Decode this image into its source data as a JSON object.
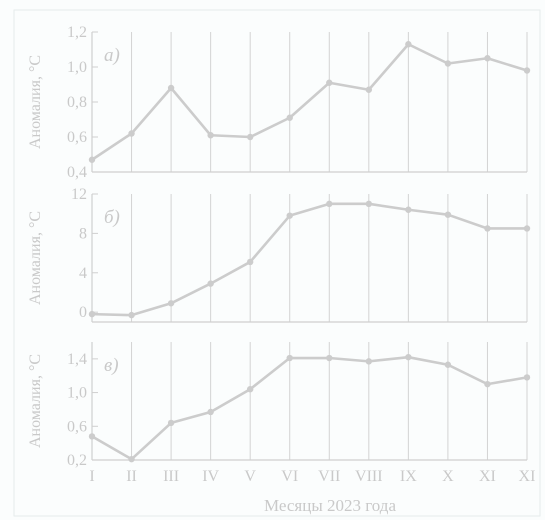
{
  "chart_data": {
    "type": "line",
    "categories": [
      "I",
      "II",
      "III",
      "IV",
      "V",
      "VI",
      "VII",
      "VIII",
      "IX",
      "X",
      "XI",
      "XI"
    ],
    "xlabel": "Месяцы 2023 года",
    "grid": true,
    "colors": {
      "line": "#cccccc",
      "text": "#c9c9c9",
      "grid": "#d3d3d3"
    },
    "panels": [
      {
        "label": "а)",
        "ylabel": "Аномалия, °С",
        "ylim": [
          0.4,
          1.2
        ],
        "yticks": [
          "0,4",
          "0,6",
          "0,8",
          "1,0",
          "1,2"
        ],
        "ytick_values": [
          0.4,
          0.6,
          0.8,
          1.0,
          1.2
        ],
        "values": [
          0.47,
          0.62,
          0.88,
          0.61,
          0.6,
          0.71,
          0.91,
          0.87,
          1.13,
          1.02,
          1.05,
          0.98
        ]
      },
      {
        "label": "б)",
        "ylabel": "Аномалия, °С",
        "ylim": [
          -1,
          12
        ],
        "yticks": [
          "0",
          "4",
          "8",
          "12"
        ],
        "ytick_values": [
          0,
          4,
          8,
          12
        ],
        "values": [
          -0.2,
          -0.3,
          0.9,
          2.9,
          5.1,
          9.8,
          11.0,
          11.0,
          10.4,
          9.9,
          8.5,
          8.5
        ]
      },
      {
        "label": "в)",
        "ylabel": "Аномалия, °С",
        "ylim": [
          0.2,
          1.6
        ],
        "yticks": [
          "0,2",
          "0,6",
          "1,0",
          "1,4"
        ],
        "ytick_values": [
          0.2,
          0.6,
          1.0,
          1.4
        ],
        "values": [
          0.48,
          0.21,
          0.64,
          0.77,
          1.04,
          1.41,
          1.41,
          1.37,
          1.42,
          1.33,
          1.1,
          1.18
        ]
      }
    ]
  }
}
